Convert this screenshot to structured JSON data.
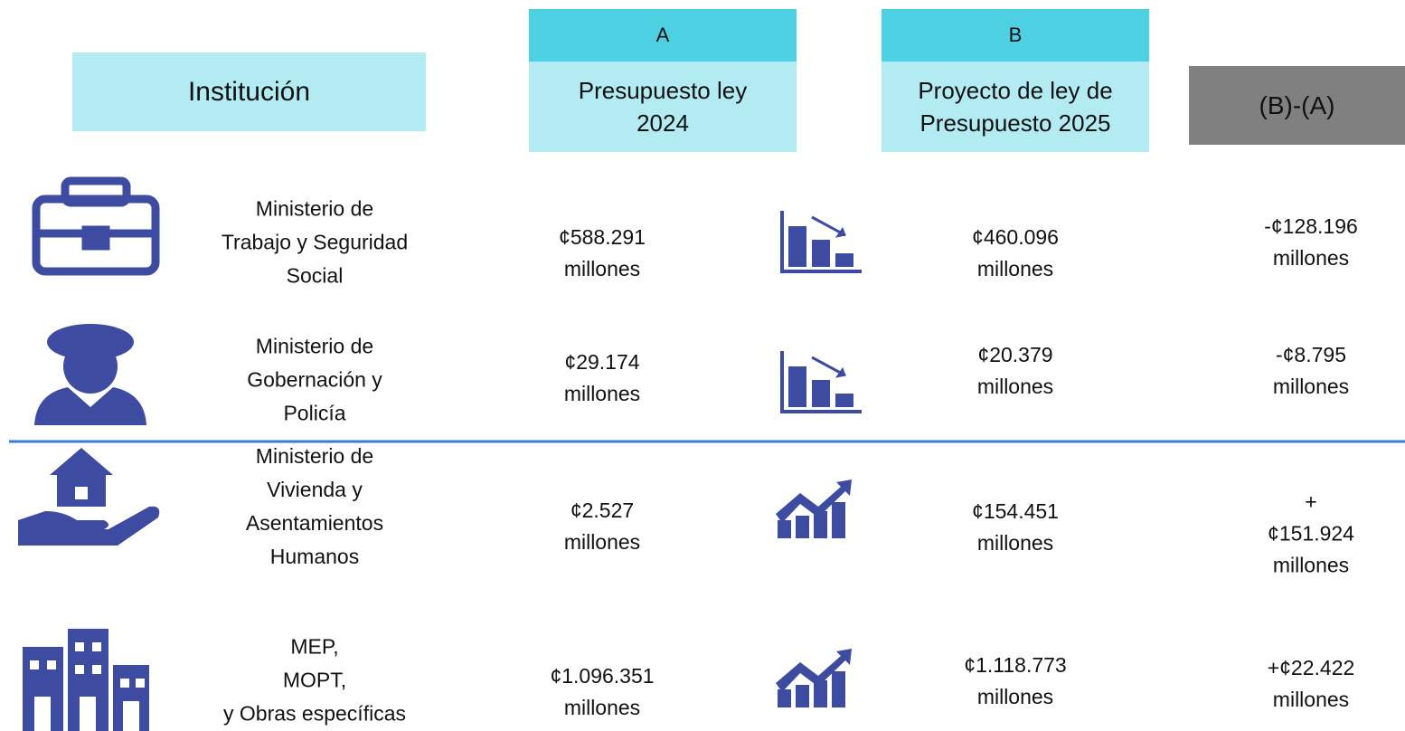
{
  "header": {
    "institution": "Institución",
    "col_a_letter": "A",
    "col_a_label": "Presupuesto ley\n2024",
    "col_b_letter": "B",
    "col_b_label": "Proyecto de ley de\nPresupuesto 2025",
    "diff_label": "(B)-(A)"
  },
  "rows": [
    {
      "institution": "Ministerio de\nTrabajo y Seguridad\nSocial",
      "a": "¢588.291\nmillones",
      "b": "¢460.096\nmillones",
      "diff": "-¢128.196\nmillones"
    },
    {
      "institution": "Ministerio de\nGobernación y\nPolicía",
      "a": "¢29.174\nmillones",
      "b": "¢20.379\nmillones",
      "diff": "-¢8.795\nmillones"
    },
    {
      "institution": "Ministerio de\nVivienda y\nAsentamientos\nHumanos",
      "a": "¢2.527\nmillones",
      "b": "¢154.451\nmillones",
      "diff": "+¢151.924\nmillones"
    },
    {
      "institution": "MEP,\nMOPT,\ny Obras específicas",
      "a": "¢1.096.351\nmillones",
      "b": "¢1.118.773\nmillones",
      "diff": "+¢22.422\nmillones"
    }
  ]
}
